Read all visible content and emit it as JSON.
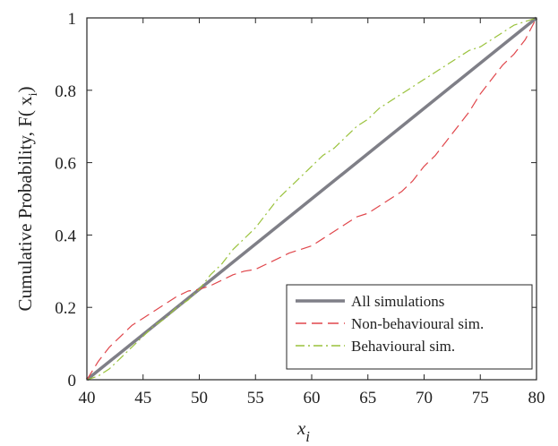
{
  "chart_data": {
    "type": "line",
    "xlabel_main": "x",
    "xlabel_sub": "i",
    "ylabel_main": "Cumulative Probability, F( x",
    "ylabel_sub": "i",
    "ylabel_close": ")",
    "xlim": [
      40,
      80
    ],
    "ylim": [
      0,
      1
    ],
    "x_ticks": [
      40,
      45,
      50,
      55,
      60,
      65,
      70,
      75,
      80
    ],
    "y_ticks": [
      0,
      0.2,
      0.4,
      0.6,
      0.8,
      1
    ],
    "y_tick_labels": [
      "0",
      "0.2",
      "0.4",
      "0.6",
      "0.8",
      "1"
    ],
    "grid": false,
    "legend_position": "bottom-right",
    "series": [
      {
        "name": "All simulations",
        "color": "#7f7f87",
        "style": "solid",
        "x": [
          40,
          80
        ],
        "y": [
          0,
          1
        ]
      },
      {
        "name": "Non-behavioural sim.",
        "color": "#e0474c",
        "style": "dashed",
        "x": [
          40,
          41,
          42,
          43,
          44,
          45,
          46,
          47,
          48,
          49,
          50,
          51,
          52,
          53,
          54,
          55,
          56,
          57,
          58,
          59,
          60,
          61,
          62,
          63,
          64,
          65,
          66,
          67,
          68,
          69,
          70,
          71,
          72,
          73,
          74,
          75,
          76,
          77,
          78,
          79,
          80
        ],
        "y": [
          0,
          0.05,
          0.09,
          0.12,
          0.15,
          0.17,
          0.19,
          0.21,
          0.23,
          0.245,
          0.25,
          0.26,
          0.275,
          0.29,
          0.3,
          0.305,
          0.32,
          0.335,
          0.35,
          0.36,
          0.37,
          0.39,
          0.41,
          0.43,
          0.45,
          0.46,
          0.48,
          0.5,
          0.52,
          0.55,
          0.59,
          0.62,
          0.66,
          0.7,
          0.74,
          0.79,
          0.83,
          0.87,
          0.9,
          0.94,
          1
        ]
      },
      {
        "name": "Behavioural sim.",
        "color": "#9ac23c",
        "style": "dashdot",
        "x": [
          40,
          41,
          42,
          43,
          44,
          45,
          46,
          47,
          48,
          49,
          50,
          51,
          52,
          53,
          54,
          55,
          56,
          57,
          58,
          59,
          60,
          61,
          62,
          63,
          64,
          65,
          66,
          67,
          68,
          69,
          70,
          71,
          72,
          73,
          74,
          75,
          76,
          77,
          78,
          79,
          80
        ],
        "y": [
          0,
          0.01,
          0.03,
          0.06,
          0.09,
          0.12,
          0.15,
          0.17,
          0.2,
          0.22,
          0.25,
          0.29,
          0.32,
          0.36,
          0.39,
          0.42,
          0.46,
          0.5,
          0.53,
          0.56,
          0.59,
          0.62,
          0.64,
          0.67,
          0.7,
          0.72,
          0.75,
          0.77,
          0.79,
          0.81,
          0.83,
          0.85,
          0.87,
          0.89,
          0.91,
          0.92,
          0.94,
          0.96,
          0.98,
          0.99,
          1
        ]
      }
    ]
  }
}
